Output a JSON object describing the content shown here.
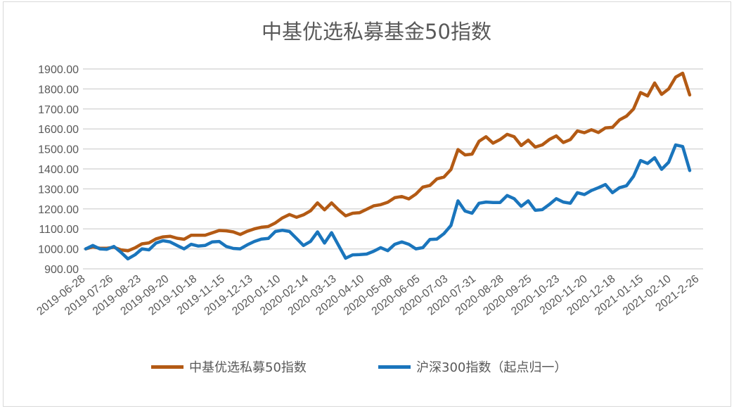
{
  "chart_data": {
    "type": "line",
    "title": "中基优选私募基金50指数",
    "xlabel": "",
    "ylabel": "",
    "ylim": [
      900,
      1900
    ],
    "yticks": [
      "900.00",
      "1000.00",
      "1100.00",
      "1200.00",
      "1300.00",
      "1400.00",
      "1500.00",
      "1600.00",
      "1700.00",
      "1800.00",
      "1900.00"
    ],
    "xtick_labels": [
      "2019-06-28",
      "2019-07-26",
      "2019-08-23",
      "2019-09-20",
      "2019-10-18",
      "2019-11-15",
      "2019-12-13",
      "2020-01-10",
      "2020-02-14",
      "2020-03-13",
      "2020-04-10",
      "2020-05-08",
      "2020-06-05",
      "2020-07-03",
      "2020-07-31",
      "2020-08-28",
      "2020-09-25",
      "2020-10-23",
      "2020-11-20",
      "2020-12-18",
      "2021-01-15",
      "2021-02-10",
      "2021-2-26"
    ],
    "grid": true,
    "legend_position": "bottom",
    "series": [
      {
        "name": "中基优选私募50指数",
        "color": "#b35a14",
        "values": [
          1000,
          1010,
          1003,
          1003,
          1008,
          995,
          990,
          1005,
          1025,
          1030,
          1050,
          1060,
          1063,
          1053,
          1048,
          1068,
          1068,
          1068,
          1080,
          1092,
          1090,
          1085,
          1072,
          1088,
          1100,
          1108,
          1112,
          1130,
          1155,
          1172,
          1158,
          1170,
          1190,
          1230,
          1195,
          1230,
          1195,
          1165,
          1178,
          1181,
          1198,
          1215,
          1221,
          1233,
          1256,
          1262,
          1250,
          1274,
          1309,
          1317,
          1350,
          1359,
          1397,
          1497,
          1470,
          1474,
          1538,
          1561,
          1529,
          1547,
          1573,
          1561,
          1517,
          1544,
          1509,
          1520,
          1547,
          1565,
          1532,
          1547,
          1590,
          1581,
          1596,
          1582,
          1605,
          1608,
          1645,
          1664,
          1700,
          1782,
          1765,
          1830,
          1773,
          1800,
          1859,
          1879,
          1770
        ]
      },
      {
        "name": "沪深300指数（起点归一）",
        "color": "#1a75bc",
        "values": [
          1000,
          1017,
          1000,
          998,
          1012,
          983,
          950,
          970,
          1000,
          995,
          1029,
          1041,
          1035,
          1017,
          1000,
          1023,
          1014,
          1017,
          1035,
          1037,
          1012,
          1002,
          1000,
          1020,
          1037,
          1049,
          1052,
          1087,
          1093,
          1087,
          1052,
          1017,
          1037,
          1085,
          1029,
          1081,
          1017,
          953,
          970,
          971,
          974,
          988,
          1006,
          991,
          1023,
          1035,
          1023,
          1000,
          1006,
          1047,
          1049,
          1076,
          1117,
          1240,
          1189,
          1178,
          1228,
          1234,
          1232,
          1232,
          1267,
          1251,
          1213,
          1240,
          1193,
          1196,
          1222,
          1251,
          1234,
          1228,
          1281,
          1272,
          1292,
          1306,
          1322,
          1281,
          1306,
          1316,
          1363,
          1442,
          1427,
          1456,
          1398,
          1433,
          1520,
          1512,
          1392
        ]
      }
    ]
  }
}
